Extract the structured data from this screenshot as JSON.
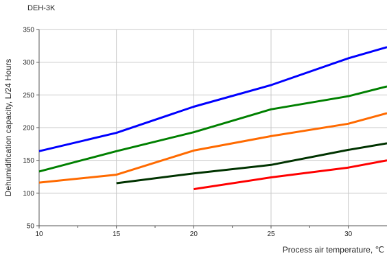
{
  "chart_data": {
    "type": "line",
    "title": "DEH-3K",
    "xlabel": "Process air temperature, ℃",
    "ylabel": "Dehumidification capacity, L/24 Hours",
    "xlim": [
      10,
      32.5
    ],
    "ylim": [
      50,
      350
    ],
    "xticks": [
      10,
      15,
      20,
      25,
      30
    ],
    "yticks": [
      50,
      100,
      150,
      200,
      250,
      300,
      350
    ],
    "grid": true,
    "series": [
      {
        "color": "#0000ff",
        "x": [
          10,
          15,
          20,
          25,
          30,
          32.5
        ],
        "y": [
          164,
          192,
          232,
          265,
          306,
          323
        ]
      },
      {
        "color": "#008000",
        "x": [
          10,
          15,
          20,
          25,
          30,
          32.5
        ],
        "y": [
          133,
          164,
          193,
          228,
          248,
          263
        ]
      },
      {
        "color": "#ff6a00",
        "x": [
          10,
          15,
          20,
          25,
          30,
          32.5
        ],
        "y": [
          116,
          128,
          165,
          187,
          206,
          222
        ]
      },
      {
        "color": "#003300",
        "x": [
          15,
          20,
          25,
          30,
          32.5
        ],
        "y": [
          115,
          130,
          143,
          166,
          176
        ]
      },
      {
        "color": "#ff0000",
        "x": [
          20,
          25,
          30,
          32.5
        ],
        "y": [
          106,
          124,
          139,
          150
        ]
      }
    ]
  }
}
